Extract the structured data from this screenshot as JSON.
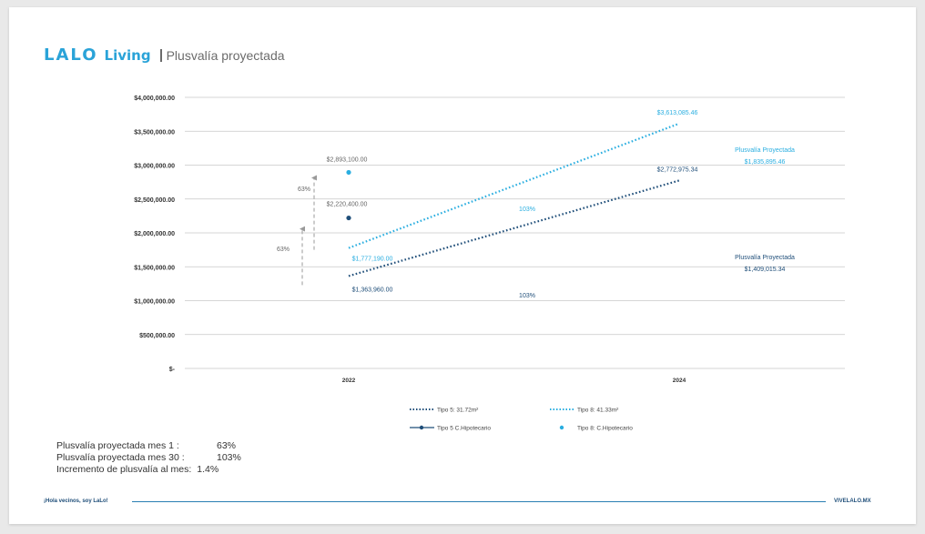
{
  "header": {
    "logo_text": "LALO",
    "brand_text": "Living",
    "title": "Plusvalía proyectada"
  },
  "colors": {
    "brand": "#2aa3d8",
    "tipo5": "#1f4e79",
    "tipo8": "#2aaee0",
    "axis_text": "#333333",
    "grid": "#c8c8c8"
  },
  "chart_data": {
    "type": "line",
    "title": "",
    "xlabel": "",
    "ylabel": "",
    "categories": [
      "2022",
      "2024"
    ],
    "ylim": [
      0,
      4000000
    ],
    "y_ticks": [
      "$4,000,000.00",
      "$3,500,000.00",
      "$3,000,000.00",
      "$2,500,000.00",
      "$2,000,000.00",
      "$1,500,000.00",
      "$1,000,000.00",
      "$500,000.00",
      "$-"
    ],
    "y_tick_values": [
      4000000,
      3500000,
      3000000,
      2500000,
      2000000,
      1500000,
      1000000,
      500000,
      0
    ],
    "grid": true,
    "legend_position": "bottom",
    "series": [
      {
        "name": "Tipo 5: 31.72m²",
        "style": "dotted-line",
        "color": "#1f4e79",
        "values": [
          1363960.0,
          2772975.34
        ],
        "labels": [
          "$1,363,960.00",
          "$2,772,975.34"
        ]
      },
      {
        "name": "Tipo 8: 41.33m²",
        "style": "dotted-line",
        "color": "#2aaee0",
        "values": [
          1777190.0,
          3613085.46
        ],
        "labels": [
          "$1,777,190.00",
          "$3,613,085.46"
        ]
      },
      {
        "name": "Tipo 5 C.Hipotecario",
        "style": "marker",
        "color": "#1f4e79",
        "values": [
          2220400.0,
          null
        ],
        "labels": [
          "$2,220,400.00",
          ""
        ]
      },
      {
        "name": "Tipo 8: C.Hipotecario",
        "style": "marker",
        "color": "#2aaee0",
        "values": [
          2893100.0,
          null
        ],
        "labels": [
          "$2,893,100.00",
          ""
        ]
      }
    ],
    "annotations": [
      {
        "id": "arrow_tipo8",
        "text": "63%",
        "from": 1777190.0,
        "to": 2893100.0
      },
      {
        "id": "arrow_tipo5",
        "text": "63%",
        "from": 1363960.0,
        "to": 2220400.0
      },
      {
        "id": "growth_tipo8",
        "text": "103%"
      },
      {
        "id": "growth_tipo5",
        "text": "103%"
      },
      {
        "id": "proj_tipo8",
        "title": "Plusvalía Proyectada",
        "value": "$1,835,895.46"
      },
      {
        "id": "proj_tipo5",
        "title": "Plusvalía Proyectada",
        "value": "$1,409,015.34"
      }
    ]
  },
  "summary": [
    {
      "label": "Plusvalía proyectada mes  1 :",
      "value": "63%"
    },
    {
      "label": "Plusvalía proyectada mes 30 :",
      "value": "103%"
    },
    {
      "label": "Incremento de plusvalía al mes:",
      "value": "1.4%"
    }
  ],
  "footer": {
    "left": "¡Hola vecinos, soy LaLo!",
    "right": "VIVELALO.MX"
  }
}
